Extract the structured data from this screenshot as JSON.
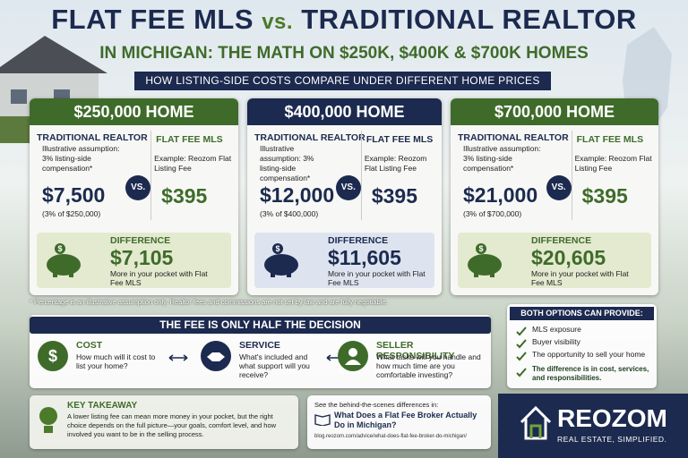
{
  "header": {
    "title_left": "FLAT FEE MLS",
    "title_vs": "vs.",
    "title_right": "TRADITIONAL REALTOR",
    "subtitle": "IN MICHIGAN: THE MATH ON $250K, $400K & $700K HOMES",
    "banner": "HOW LISTING-SIDE COSTS COMPARE UNDER DIFFERENT HOME PRICES"
  },
  "cards": [
    {
      "heading": "$250,000 HOME",
      "traditional_label": "TRADITIONAL REALTOR",
      "traditional_note": "Illustrative assumption: 3% listing-side compensation*",
      "traditional_cost": "$7,500",
      "traditional_calc": "(3% of $250,000)",
      "vs": "VS.",
      "flat_label": "FLAT FEE MLS",
      "flat_note": "Example: Reozom Flat Listing Fee",
      "flat_cost": "$395",
      "difference_label": "DIFFERENCE",
      "difference_value": "$7,105",
      "difference_note": "More in your pocket with Flat Fee MLS"
    },
    {
      "heading": "$400,000 HOME",
      "traditional_label": "TRADITIONAL REALTOR",
      "traditional_note": "Illustrative assumption: 3% listing-side compensation*",
      "traditional_cost": "$12,000",
      "traditional_calc": "(3% of $400,000)",
      "vs": "VS.",
      "flat_label": "FLAT FEE MLS",
      "flat_note": "Example: Reozom Flat Listing Fee",
      "flat_cost": "$395",
      "difference_label": "DIFFERENCE",
      "difference_value": "$11,605",
      "difference_note": "More in your pocket with Flat Fee MLS"
    },
    {
      "heading": "$700,000 HOME",
      "traditional_label": "TRADITIONAL REALTOR",
      "traditional_note": "Illustrative assumption: 3% listing-side compensation*",
      "traditional_cost": "$21,000",
      "traditional_calc": "(3% of $700,000)",
      "vs": "VS.",
      "flat_label": "FLAT FEE MLS",
      "flat_note": "Example: Reozom Flat Listing Fee",
      "flat_cost": "$395",
      "difference_label": "DIFFERENCE",
      "difference_value": "$20,605",
      "difference_note": "More in your pocket with Flat Fee MLS"
    }
  ],
  "footnote": "* Percentage is an illustrative assumption only. Realtor fees and commissions are not set by law and are fully negotiable.",
  "decision": {
    "title": "THE FEE IS ONLY HALF THE DECISION",
    "items": [
      {
        "label": "COST",
        "text": "How much will it cost to list your home?"
      },
      {
        "label": "SERVICE",
        "text": "What's included and what support will you receive?"
      },
      {
        "label": "SELLER RESPONSIBILITY",
        "text": "What tasks will you handle and how much time are you comfortable investing?"
      }
    ]
  },
  "options": {
    "title": "BOTH OPTIONS CAN PROVIDE:",
    "items": [
      "MLS exposure",
      "Buyer visibility",
      "The opportunity to sell your home"
    ],
    "conclusion": "The difference is in cost, services, and responsibilities."
  },
  "takeaway": {
    "title": "KEY TAKEAWAY",
    "text": "A lower listing fee can mean more money in your pocket, but the right choice depends on the full picture—your goals, comfort level, and how involved you want to be in the selling process."
  },
  "link": {
    "intro": "See the behind-the-scenes differences in:",
    "title": "What Does a Flat Fee Broker Actually Do in Michigan?",
    "url": "blog.reozom.com/advice/what-does-flat-fee-broker-do-michigan/"
  },
  "brand": {
    "name": "REOZOM",
    "tagline": "REAL ESTATE, SIMPLIFIED."
  }
}
